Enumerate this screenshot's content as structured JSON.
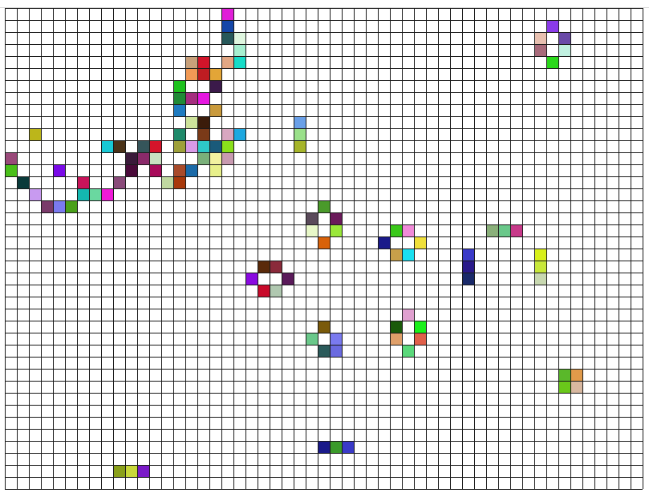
{
  "board": {
    "cols": 53,
    "rows": 40,
    "grid_line_color": "#1a1a1a",
    "background_color": "#ffffff",
    "live_cells": [
      {
        "col": 18,
        "row": 0,
        "color": "#e01fd8"
      },
      {
        "col": 18,
        "row": 1,
        "color": "#1446a8"
      },
      {
        "col": 18,
        "row": 2,
        "color": "#27585a"
      },
      {
        "col": 19,
        "row": 2,
        "color": "#dff6df"
      },
      {
        "col": 19,
        "row": 3,
        "color": "#a6efd0"
      },
      {
        "col": 15,
        "row": 4,
        "color": "#c8a07a"
      },
      {
        "col": 16,
        "row": 4,
        "color": "#d1142a"
      },
      {
        "col": 18,
        "row": 4,
        "color": "#e2a784"
      },
      {
        "col": 19,
        "row": 4,
        "color": "#17dcc8"
      },
      {
        "col": 15,
        "row": 5,
        "color": "#f29a55"
      },
      {
        "col": 16,
        "row": 5,
        "color": "#bf1c22"
      },
      {
        "col": 17,
        "row": 5,
        "color": "#e3a537"
      },
      {
        "col": 14,
        "row": 6,
        "color": "#1ec21e"
      },
      {
        "col": 17,
        "row": 6,
        "color": "#3b1a4a"
      },
      {
        "col": 14,
        "row": 7,
        "color": "#208a36"
      },
      {
        "col": 15,
        "row": 7,
        "color": "#a52d7f"
      },
      {
        "col": 16,
        "row": 7,
        "color": "#e617e0"
      },
      {
        "col": 14,
        "row": 8,
        "color": "#1f7bc0"
      },
      {
        "col": 17,
        "row": 8,
        "color": "#c99a3c"
      },
      {
        "col": 15,
        "row": 9,
        "color": "#cde39a"
      },
      {
        "col": 16,
        "row": 9,
        "color": "#3b1c0a"
      },
      {
        "col": 2,
        "row": 10,
        "color": "#bcb61a"
      },
      {
        "col": 14,
        "row": 10,
        "color": "#1f8a6a"
      },
      {
        "col": 16,
        "row": 10,
        "color": "#7a3a18"
      },
      {
        "col": 18,
        "row": 10,
        "color": "#d8a7c0"
      },
      {
        "col": 19,
        "row": 10,
        "color": "#1ea8e0"
      },
      {
        "col": 24,
        "row": 9,
        "color": "#6aa0e8"
      },
      {
        "col": 24,
        "row": 10,
        "color": "#9ae08a"
      },
      {
        "col": 24,
        "row": 11,
        "color": "#a6b52a"
      },
      {
        "col": 8,
        "row": 11,
        "color": "#18c8d4"
      },
      {
        "col": 9,
        "row": 11,
        "color": "#4a3218"
      },
      {
        "col": 11,
        "row": 11,
        "color": "#35555a"
      },
      {
        "col": 12,
        "row": 11,
        "color": "#d4142a"
      },
      {
        "col": 14,
        "row": 11,
        "color": "#9ea03a"
      },
      {
        "col": 15,
        "row": 11,
        "color": "#d89ae8"
      },
      {
        "col": 16,
        "row": 11,
        "color": "#2ec8c8"
      },
      {
        "col": 17,
        "row": 11,
        "color": "#1a5a7a"
      },
      {
        "col": 18,
        "row": 11,
        "color": "#8ae01c"
      },
      {
        "col": 0,
        "row": 12,
        "color": "#9a4a7a"
      },
      {
        "col": 10,
        "row": 12,
        "color": "#3a1a3a"
      },
      {
        "col": 11,
        "row": 12,
        "color": "#8a2a6a"
      },
      {
        "col": 12,
        "row": 12,
        "color": "#c8e0c0"
      },
      {
        "col": 16,
        "row": 12,
        "color": "#7ab07a"
      },
      {
        "col": 17,
        "row": 12,
        "color": "#f2f2a0"
      },
      {
        "col": 18,
        "row": 12,
        "color": "#c89ab0"
      },
      {
        "col": 0,
        "row": 13,
        "color": "#4ac01a"
      },
      {
        "col": 4,
        "row": 13,
        "color": "#7a0ae8"
      },
      {
        "col": 10,
        "row": 13,
        "color": "#4a0a3a"
      },
      {
        "col": 12,
        "row": 13,
        "color": "#a80a5a"
      },
      {
        "col": 14,
        "row": 13,
        "color": "#a84a2a"
      },
      {
        "col": 15,
        "row": 13,
        "color": "#1a6aa8"
      },
      {
        "col": 17,
        "row": 13,
        "color": "#e8f08a"
      },
      {
        "col": 1,
        "row": 14,
        "color": "#0a3a3a"
      },
      {
        "col": 6,
        "row": 14,
        "color": "#c8145a"
      },
      {
        "col": 9,
        "row": 14,
        "color": "#8a4a7a"
      },
      {
        "col": 13,
        "row": 14,
        "color": "#c0d8a0"
      },
      {
        "col": 14,
        "row": 14,
        "color": "#a8380a"
      },
      {
        "col": 2,
        "row": 15,
        "color": "#c89af0"
      },
      {
        "col": 6,
        "row": 15,
        "color": "#14b8b0"
      },
      {
        "col": 7,
        "row": 15,
        "color": "#6ad8a0"
      },
      {
        "col": 8,
        "row": 15,
        "color": "#f01ad8"
      },
      {
        "col": 3,
        "row": 16,
        "color": "#7a3a6a"
      },
      {
        "col": 4,
        "row": 16,
        "color": "#7a7af0"
      },
      {
        "col": 5,
        "row": 16,
        "color": "#4aa01a"
      },
      {
        "col": 45,
        "row": 1,
        "color": "#8a3ae8"
      },
      {
        "col": 44,
        "row": 2,
        "color": "#e8c0b0"
      },
      {
        "col": 46,
        "row": 2,
        "color": "#6a4aa8"
      },
      {
        "col": 44,
        "row": 3,
        "color": "#a86a7a"
      },
      {
        "col": 46,
        "row": 3,
        "color": "#c0f0e0"
      },
      {
        "col": 45,
        "row": 4,
        "color": "#2ad81a"
      },
      {
        "col": 26,
        "row": 16,
        "color": "#4a9a2a"
      },
      {
        "col": 25,
        "row": 17,
        "color": "#5a4a5a"
      },
      {
        "col": 27,
        "row": 17,
        "color": "#6a1a5a"
      },
      {
        "col": 25,
        "row": 18,
        "color": "#e8f8c8"
      },
      {
        "col": 27,
        "row": 18,
        "color": "#9ae83a"
      },
      {
        "col": 26,
        "row": 19,
        "color": "#d8620a"
      },
      {
        "col": 32,
        "row": 18,
        "color": "#3ac81a"
      },
      {
        "col": 33,
        "row": 18,
        "color": "#f08ad8"
      },
      {
        "col": 31,
        "row": 19,
        "color": "#1a1a8a"
      },
      {
        "col": 34,
        "row": 19,
        "color": "#f0e03a"
      },
      {
        "col": 32,
        "row": 20,
        "color": "#c8a04a"
      },
      {
        "col": 33,
        "row": 20,
        "color": "#1ae0f0"
      },
      {
        "col": 40,
        "row": 18,
        "color": "#8ab07a"
      },
      {
        "col": 41,
        "row": 18,
        "color": "#6ac88a"
      },
      {
        "col": 42,
        "row": 18,
        "color": "#c83a8a"
      },
      {
        "col": 38,
        "row": 20,
        "color": "#3a3ac8"
      },
      {
        "col": 38,
        "row": 21,
        "color": "#2a1a8a"
      },
      {
        "col": 38,
        "row": 22,
        "color": "#1a2a6a"
      },
      {
        "col": 44,
        "row": 20,
        "color": "#d8f01a"
      },
      {
        "col": 44,
        "row": 21,
        "color": "#c8e83a"
      },
      {
        "col": 44,
        "row": 22,
        "color": "#c8d8b0"
      },
      {
        "col": 21,
        "row": 21,
        "color": "#5a2a0a"
      },
      {
        "col": 22,
        "row": 21,
        "color": "#8a2a3a"
      },
      {
        "col": 20,
        "row": 22,
        "color": "#8a0ae0"
      },
      {
        "col": 23,
        "row": 22,
        "color": "#5a1a5a"
      },
      {
        "col": 21,
        "row": 23,
        "color": "#c80a2a"
      },
      {
        "col": 22,
        "row": 23,
        "color": "#b0c8b0"
      },
      {
        "col": 33,
        "row": 25,
        "color": "#e0a0d0"
      },
      {
        "col": 32,
        "row": 26,
        "color": "#1a5a0a"
      },
      {
        "col": 34,
        "row": 26,
        "color": "#1af01a"
      },
      {
        "col": 32,
        "row": 27,
        "color": "#e0a06a"
      },
      {
        "col": 34,
        "row": 27,
        "color": "#e0604a"
      },
      {
        "col": 33,
        "row": 28,
        "color": "#5ad87a"
      },
      {
        "col": 26,
        "row": 26,
        "color": "#7a5a0a"
      },
      {
        "col": 25,
        "row": 27,
        "color": "#6ac88a"
      },
      {
        "col": 27,
        "row": 27,
        "color": "#7a7af0"
      },
      {
        "col": 26,
        "row": 28,
        "color": "#2a5a5a"
      },
      {
        "col": 27,
        "row": 28,
        "color": "#6a6ae0"
      },
      {
        "col": 46,
        "row": 30,
        "color": "#5ab82a"
      },
      {
        "col": 47,
        "row": 30,
        "color": "#e09a4a"
      },
      {
        "col": 46,
        "row": 31,
        "color": "#6ac81a"
      },
      {
        "col": 47,
        "row": 31,
        "color": "#d8b8a0"
      },
      {
        "col": 26,
        "row": 36,
        "color": "#1a1a8a"
      },
      {
        "col": 27,
        "row": 36,
        "color": "#3a9a2a"
      },
      {
        "col": 28,
        "row": 36,
        "color": "#3a3ac8"
      },
      {
        "col": 9,
        "row": 38,
        "color": "#8aa01a"
      },
      {
        "col": 10,
        "row": 38,
        "color": "#c8d83a"
      },
      {
        "col": 11,
        "row": 38,
        "color": "#7a1ac8"
      }
    ]
  }
}
